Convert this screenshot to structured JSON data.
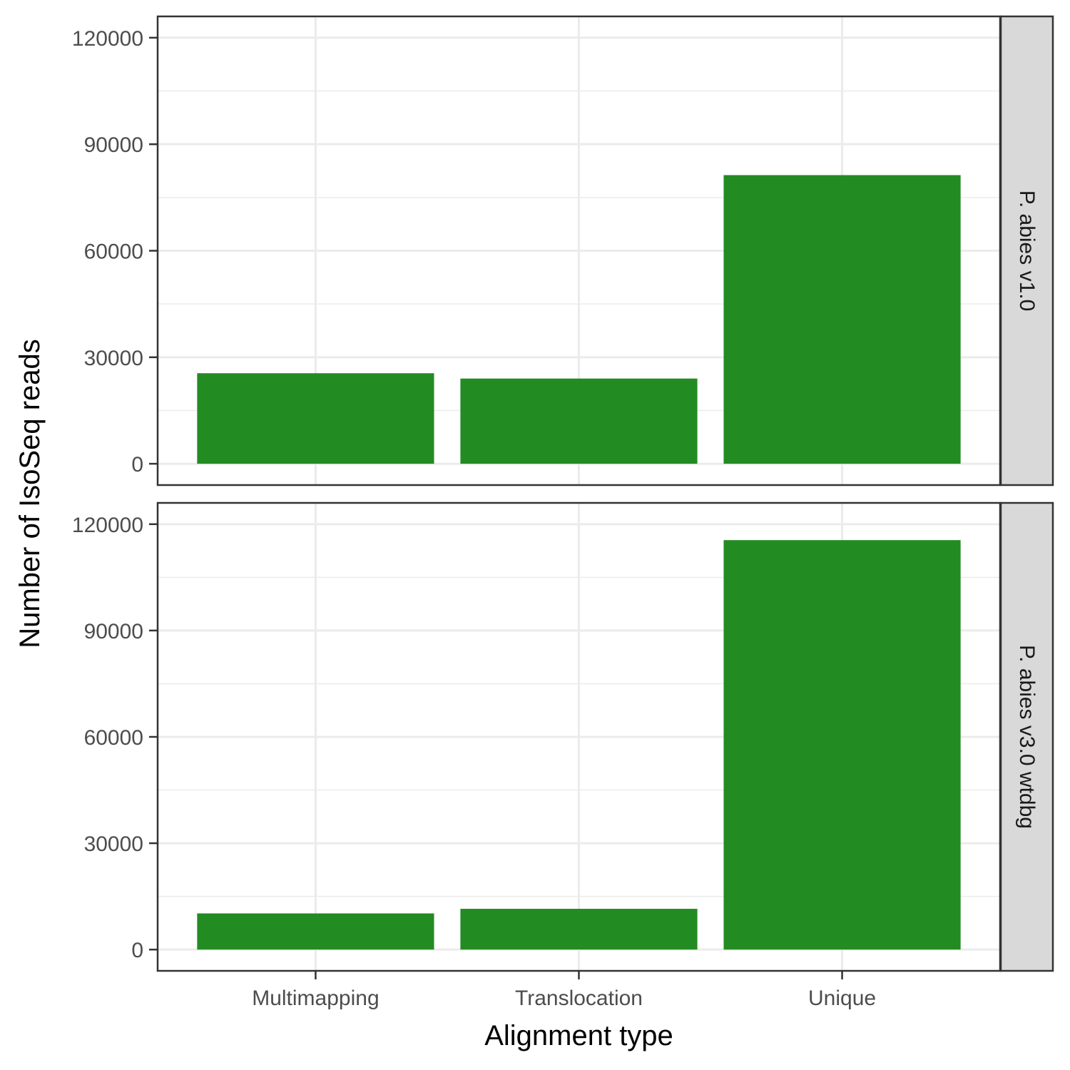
{
  "chart_data": {
    "type": "bar",
    "xlabel": "Alignment type",
    "ylabel": "Number of IsoSeq reads",
    "categories": [
      "Multimapping",
      "Translocation",
      "Unique"
    ],
    "ylim": [
      0,
      120000
    ],
    "yticks": [
      0,
      30000,
      60000,
      90000,
      120000
    ],
    "ytick_labels": [
      "0",
      "30000",
      "60000",
      "90000",
      "120000"
    ],
    "grid": true,
    "bar_color": "#228B22",
    "facets": [
      {
        "label": "P. abies v1.0",
        "values": [
          25500,
          24000,
          81300
        ]
      },
      {
        "label": "P. abies v3.0 wtdbg",
        "values": [
          10200,
          11500,
          115500
        ]
      }
    ]
  }
}
